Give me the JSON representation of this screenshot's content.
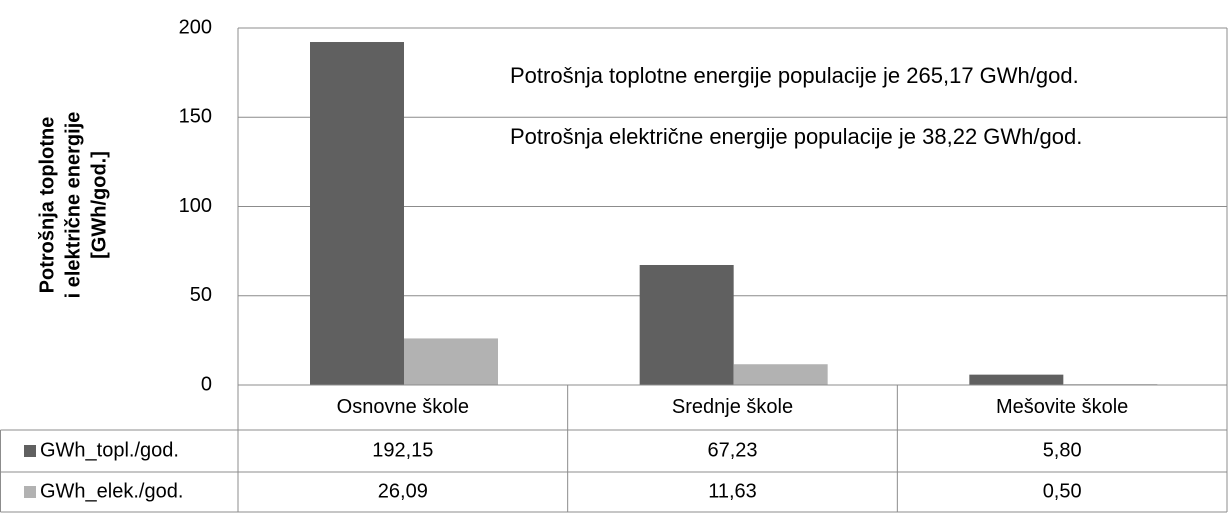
{
  "chart_data": {
    "type": "bar",
    "ylabel": [
      "Potrošnja toplotne",
      "i električne energije",
      "[GWh/god.]"
    ],
    "annotations": [
      "Potrošnja toplotne energije populacije je 265,17 GWh/god.",
      "Potrošnja električne energije populacije je 38,22 GWh/god."
    ],
    "categories": [
      "Osnovne škole",
      "Srednje škole",
      "Mešovite škole"
    ],
    "series": [
      {
        "name": "GWh_topl./god.",
        "color": "#606060",
        "values": [
          192.15,
          67.23,
          5.8
        ],
        "value_labels": [
          "192,15",
          "67,23",
          "5,80"
        ]
      },
      {
        "name": "GWh_elek./god.",
        "color": "#b2b2b2",
        "values": [
          26.09,
          11.63,
          0.5
        ],
        "value_labels": [
          "26,09",
          "11,63",
          "0,50"
        ]
      }
    ],
    "ylim": [
      0,
      200
    ],
    "yticks": [
      0,
      50,
      100,
      150,
      200
    ],
    "grid": true
  }
}
